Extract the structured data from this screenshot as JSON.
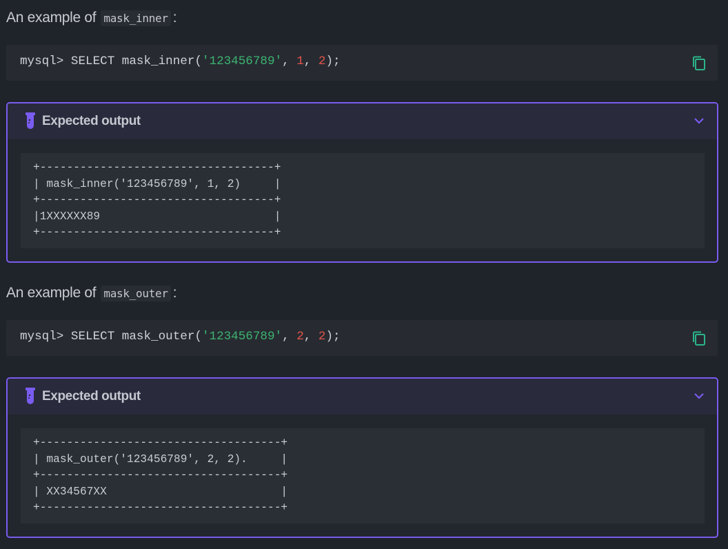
{
  "colors": {
    "accent": "#7a5cf0",
    "copy_icon": "#2bb58a",
    "string": "#3cb371",
    "number": "#e5534b"
  },
  "sections": [
    {
      "heading_prefix": "An example of",
      "heading_code": "mask_inner",
      "heading_suffix": ":",
      "code": {
        "prompt": "mysql> SELECT mask_inner(",
        "str": "'123456789'",
        "sep1": ", ",
        "n1": "1",
        "sep2": ", ",
        "n2": "2",
        "end": ");"
      },
      "copy_icon": "copy-icon",
      "output": {
        "title": "Expected output",
        "icon": "test-tube-icon",
        "toggle_icon": "chevron-down-icon",
        "text": "+-----------------------------------+\n| mask_inner('123456789', 1, 2)     |\n+-----------------------------------+\n|1XXXXXX89                          |\n+-----------------------------------+"
      }
    },
    {
      "heading_prefix": "An example of",
      "heading_code": "mask_outer",
      "heading_suffix": ":",
      "code": {
        "prompt": "mysql> SELECT mask_outer(",
        "str": "'123456789'",
        "sep1": ", ",
        "n1": "2",
        "sep2": ", ",
        "n2": "2",
        "end": ");"
      },
      "copy_icon": "copy-icon",
      "output": {
        "title": "Expected output",
        "icon": "test-tube-icon",
        "toggle_icon": "chevron-down-icon",
        "text": "+------------------------------------+\n| mask_outer('123456789', 2, 2).     |\n+------------------------------------+\n| XX34567XX                          |\n+------------------------------------+"
      }
    }
  ]
}
